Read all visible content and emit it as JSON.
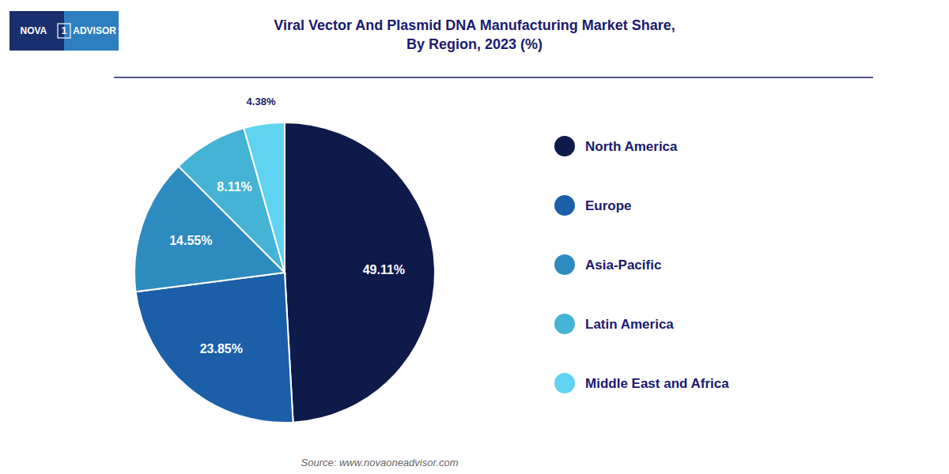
{
  "chart_data": {
    "type": "pie",
    "title": "Viral Vector And Plasmid DNA Manufacturing Market Share,\nBy Region, 2023 (%)",
    "categories": [
      "North America",
      "Europe",
      "Asia-Pacific",
      "Latin America",
      "Middle East and Africa"
    ],
    "values": [
      49.11,
      23.85,
      14.55,
      8.11,
      4.38
    ],
    "value_labels": [
      "49.11%",
      "23.85%",
      "14.55%",
      "8.11%",
      "4.38%"
    ],
    "colors": [
      "#0d1a4a",
      "#1a5fa8",
      "#2e8bc0",
      "#45b3d4",
      "#5fd3f0"
    ],
    "data_labels": true,
    "legend": "right",
    "annotations": [
      "Source: www.novaoneadvisor.com",
      "NOVA",
      "1",
      "ADVISOR"
    ]
  }
}
